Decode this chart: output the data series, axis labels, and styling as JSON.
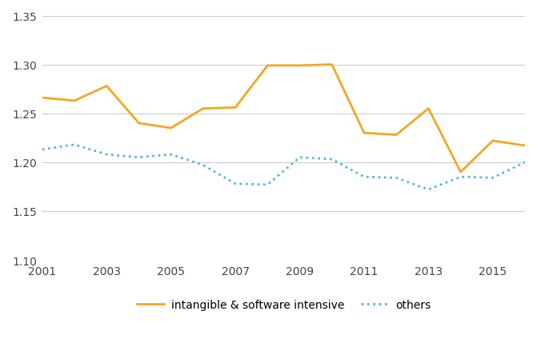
{
  "years": [
    2001,
    2002,
    2003,
    2004,
    2005,
    2006,
    2007,
    2008,
    2009,
    2010,
    2011,
    2012,
    2013,
    2014,
    2015,
    2016
  ],
  "intangible": [
    1.266,
    1.263,
    1.278,
    1.24,
    1.235,
    1.255,
    1.256,
    1.299,
    1.299,
    1.3,
    1.23,
    1.228,
    1.255,
    1.19,
    1.222,
    1.217
  ],
  "others": [
    1.213,
    1.218,
    1.208,
    1.205,
    1.208,
    1.197,
    1.178,
    1.177,
    1.205,
    1.203,
    1.185,
    1.184,
    1.172,
    1.185,
    1.184,
    1.2
  ],
  "intangible_color": "#F5A623",
  "others_color": "#4DBADC",
  "ylim": [
    1.1,
    1.35
  ],
  "yticks": [
    1.1,
    1.15,
    1.2,
    1.25,
    1.3,
    1.35
  ],
  "xticks": [
    2001,
    2003,
    2005,
    2007,
    2009,
    2011,
    2013,
    2015
  ],
  "legend_label_intangible": "intangible & software intensive",
  "legend_label_others": "others",
  "background_color": "#ffffff",
  "grid_color": "#cccccc"
}
